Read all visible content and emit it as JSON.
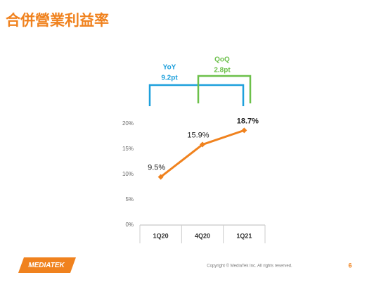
{
  "chart_data": {
    "type": "line",
    "title": "合併營業利益率",
    "categories": [
      "1Q20",
      "4Q20",
      "1Q21"
    ],
    "series": [
      {
        "color": "#f0821e",
        "values": [
          9.5,
          15.9,
          18.7
        ],
        "value_labels": [
          "9.5%",
          "15.9%",
          "18.7%"
        ]
      }
    ],
    "ylim": [
      0,
      20
    ],
    "yticks": [
      {
        "value": 0,
        "label": "0%"
      },
      {
        "value": 5,
        "label": "5%"
      },
      {
        "value": 10,
        "label": "10%"
      },
      {
        "value": 15,
        "label": "15%"
      },
      {
        "value": 20,
        "label": "20%"
      }
    ],
    "annotations": [
      {
        "label": "YoY",
        "text": "9.2pt",
        "color": "#1ea0dc"
      },
      {
        "label": "QoQ",
        "text": "2.8pt",
        "color": "#6cc04a"
      }
    ]
  },
  "footer": {
    "logo": "MEDIATEK",
    "copyright": "Copyright © MediaTek Inc. All rights reserved.",
    "page_number": "6"
  }
}
